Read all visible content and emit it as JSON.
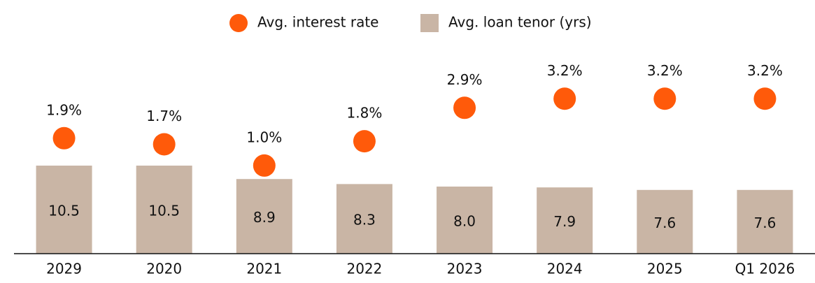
{
  "chart_data": {
    "type": "bar-dot",
    "categories": [
      "2029",
      "2020",
      "2021",
      "2022",
      "2023",
      "2024",
      "2025",
      "Q1 2026"
    ],
    "series": [
      {
        "name": "Avg. interest rate",
        "color": "#ff5a0a",
        "axis": "y2",
        "values": [
          1.9,
          1.7,
          1.0,
          1.8,
          2.9,
          3.2,
          3.2,
          3.2
        ],
        "value_labels": [
          "1.9%",
          "1.7%",
          "1.0%",
          "1.8%",
          "2.9%",
          "3.2%",
          "3.2%",
          "3.2%"
        ]
      },
      {
        "name": "Avg. loan tenor (yrs)",
        "color": "#c9b5a5",
        "values": [
          10.5,
          10.5,
          8.9,
          8.3,
          8.0,
          7.9,
          7.6,
          7.6
        ],
        "value_labels": [
          "10.5",
          "10.5",
          "8.9",
          "8.3",
          "8.0",
          "7.9",
          "7.6",
          "7.6"
        ]
      }
    ],
    "ylim": [
      0,
      25
    ],
    "y2lim": [
      -1.9,
      5
    ],
    "legend": "top"
  }
}
